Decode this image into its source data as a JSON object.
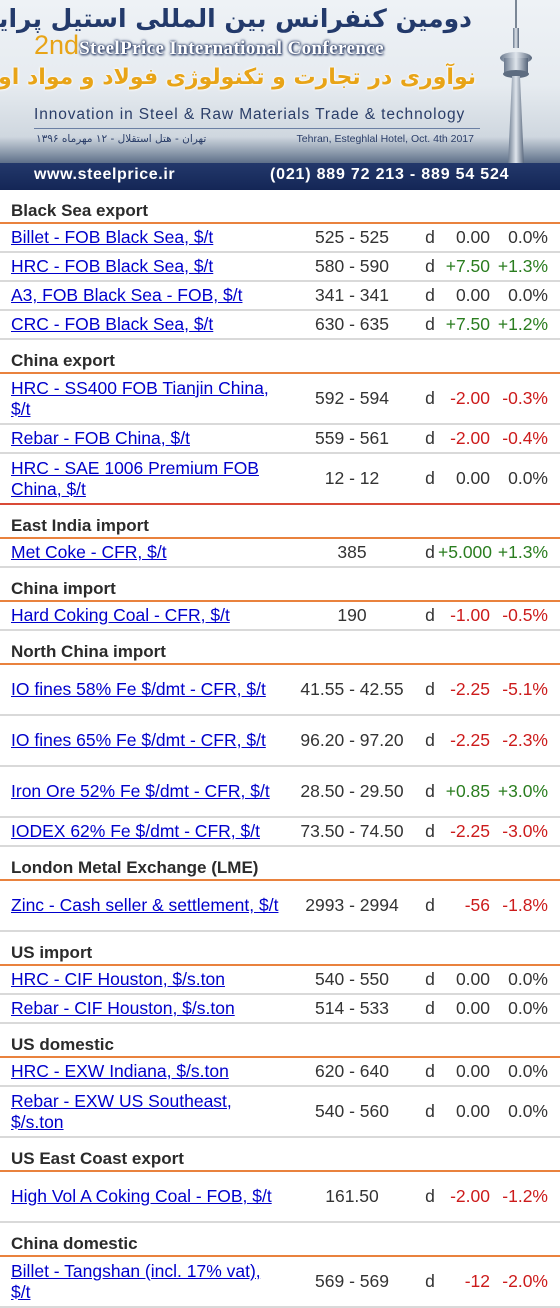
{
  "banner": {
    "title_fa": "دومین کنفرانس بین المللی استیل پرایس",
    "title_en_big": "2nd",
    "title_en_rest": "SteelPrice International Conference",
    "subtitle_fa": "نوآوری در تجارت و تکنولوژی فولاد و مواد اولیه",
    "subtitle_en": "Innovation in Steel & Raw Materials Trade & technology",
    "venue_fa": "تهران - هتل استقلال - ۱۲ مهرماه ۱۳۹۶",
    "venue_en": "Tehran, Esteghlal Hotel, Oct. 4th 2017",
    "url": "www.steelprice.ir",
    "phone": "(021)  889 72 213     -     889 54 524"
  },
  "sections": [
    {
      "title": "Black Sea export",
      "rows": [
        {
          "name": "Billet - FOB Black Sea, $/t",
          "price": "525 - 525",
          "d": "d",
          "change": "0.00",
          "pct": "0.0%",
          "trend": "zero"
        },
        {
          "name": "HRC - FOB Black Sea, $/t",
          "price": "580 - 590",
          "d": "d",
          "change": "+7.50",
          "pct": "+1.3%",
          "trend": "pos"
        },
        {
          "name": "A3, FOB Black Sea - FOB, $/t",
          "price": "341 - 341",
          "d": "d",
          "change": "0.00",
          "pct": "0.0%",
          "trend": "zero"
        },
        {
          "name": "CRC - FOB Black Sea, $/t",
          "price": "630 - 635",
          "d": "d",
          "change": "+7.50",
          "pct": "+1.2%",
          "trend": "pos"
        }
      ]
    },
    {
      "title": "China export",
      "rows": [
        {
          "name": "HRC - SS400 FOB Tianjin China, $/t",
          "price": "592 - 594",
          "d": "d",
          "change": "-2.00",
          "pct": "-0.3%",
          "trend": "neg"
        },
        {
          "name": "Rebar - FOB China, $/t",
          "price": "559 - 561",
          "d": "d",
          "change": "-2.00",
          "pct": "-0.4%",
          "trend": "neg"
        },
        {
          "name": "HRC - SAE 1006 Premium FOB China, $/t",
          "price": "12 - 12",
          "d": "d",
          "change": "0.00",
          "pct": "0.0%",
          "trend": "zero"
        }
      ]
    },
    {
      "title": "East India import",
      "rows": [
        {
          "name": "Met Coke - CFR, $/t",
          "price": "385",
          "d": "d",
          "change": "+5.000",
          "pct": "+1.3%",
          "trend": "pos"
        }
      ]
    },
    {
      "title": "China import",
      "rows": [
        {
          "name": "Hard Coking Coal - CFR, $/t",
          "price": "190",
          "d": "d",
          "change": "-1.00",
          "pct": "-0.5%",
          "trend": "neg"
        }
      ]
    },
    {
      "title": "North China import",
      "rows": [
        {
          "name": "IO fines 58% Fe $/dmt - CFR, $/t",
          "price": "41.55 - 42.55",
          "d": "d",
          "change": "-2.25",
          "pct": "-5.1%",
          "trend": "neg"
        },
        {
          "name": "IO fines 65% Fe $/dmt - CFR, $/t",
          "price": "96.20 - 97.20",
          "d": "d",
          "change": "-2.25",
          "pct": "-2.3%",
          "trend": "neg"
        },
        {
          "name": "Iron Ore 52% Fe $/dmt - CFR, $/t",
          "price": "28.50 - 29.50",
          "d": "d",
          "change": "+0.85",
          "pct": "+3.0%",
          "trend": "pos"
        },
        {
          "name": "IODEX 62% Fe $/dmt - CFR, $/t",
          "price": "73.50 - 74.50",
          "d": "d",
          "change": "-2.25",
          "pct": "-3.0%",
          "trend": "neg"
        }
      ]
    },
    {
      "title": "London Metal Exchange (LME)",
      "rows": [
        {
          "name": "Zinc - Cash seller & settlement, $/t",
          "price": "2993 - 2994",
          "d": "d",
          "change": "-56",
          "pct": "-1.8%",
          "trend": "neg"
        }
      ]
    },
    {
      "title": "US import",
      "rows": [
        {
          "name": "HRC - CIF Houston, $/s.ton",
          "price": "540 - 550",
          "d": "d",
          "change": "0.00",
          "pct": "0.0%",
          "trend": "zero"
        },
        {
          "name": "Rebar - CIF Houston, $/s.ton",
          "price": "514 - 533",
          "d": "d",
          "change": "0.00",
          "pct": "0.0%",
          "trend": "zero"
        }
      ]
    },
    {
      "title": "US domestic",
      "rows": [
        {
          "name": "HRC - EXW Indiana, $/s.ton",
          "price": "620 - 640",
          "d": "d",
          "change": "0.00",
          "pct": "0.0%",
          "trend": "zero"
        },
        {
          "name": "Rebar - EXW US Southeast, $/s.ton",
          "price": "540 - 560",
          "d": "d",
          "change": "0.00",
          "pct": "0.0%",
          "trend": "zero"
        }
      ]
    },
    {
      "title": "US East Coast export",
      "rows": [
        {
          "name": "High Vol A Coking Coal - FOB, $/t",
          "price": "161.50",
          "d": "d",
          "change": "-2.00",
          "pct": "-1.2%",
          "trend": "neg"
        }
      ]
    },
    {
      "title": "China domestic",
      "rows": [
        {
          "name": "Billet - Tangshan (incl. 17% vat), $/t",
          "price": "569 - 569",
          "d": "d",
          "change": "-12",
          "pct": "-2.0%",
          "trend": "neg"
        }
      ]
    }
  ]
}
